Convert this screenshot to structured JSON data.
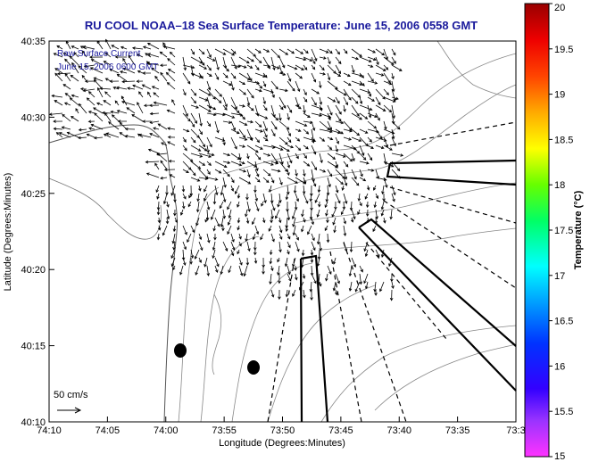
{
  "map": {
    "title": "RU COOL  NOAA–18  Sea Surface Temperature:  June 15, 2006 0558 GMT",
    "xlabel": "Longitude (Degrees:Minutes)",
    "ylabel": "Latitude (Degrees:Minutes)",
    "x_ticks": [
      "74:10",
      "74:05",
      "74:00",
      "73:55",
      "73:50",
      "73:45",
      "73:40",
      "73:35",
      "73:3"
    ],
    "y_ticks": [
      "40:35",
      "40:30",
      "40:25",
      "40:20",
      "40:15",
      "40:10"
    ],
    "legend_line1": "Raw Surface Current",
    "legend_line2": "June 15, 2006 0600 GMT",
    "scale_label": "50 cm/s",
    "colors": {
      "title": "#1a1a9c",
      "land": "#ffffff",
      "lines": "#000000",
      "contours": "#888888"
    }
  },
  "colorbar": {
    "label": "Temperature (°C)",
    "ticks": [
      "20",
      "19.5",
      "19",
      "18.5",
      "18",
      "17.5",
      "17",
      "16.5",
      "16",
      "15.5",
      "15"
    ]
  }
}
